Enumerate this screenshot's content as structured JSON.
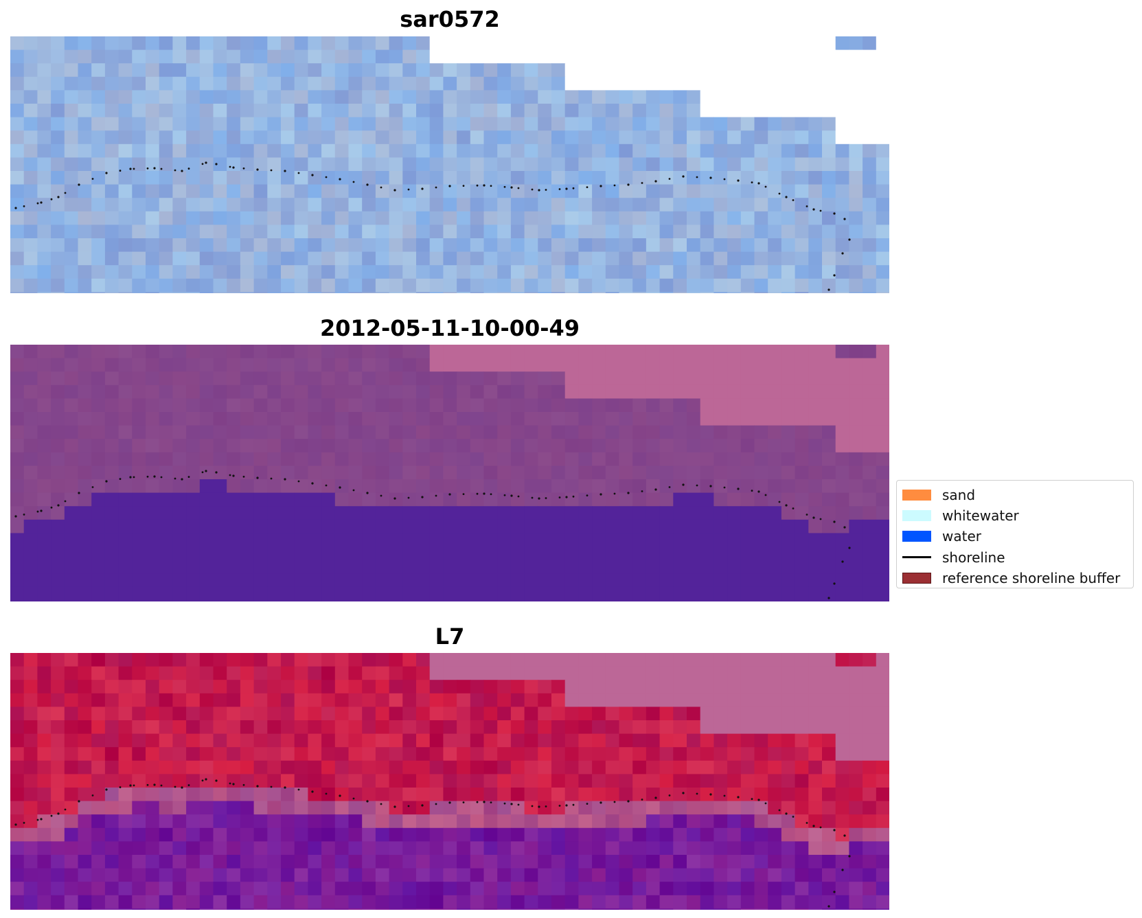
{
  "panels": [
    {
      "title": "sar0572",
      "kind": "rgb"
    },
    {
      "title": "2012-05-11-10-00-49",
      "kind": "classified"
    },
    {
      "title": "L7",
      "kind": "index"
    }
  ],
  "legend": {
    "items": [
      {
        "label": "sand",
        "type": "patch",
        "color": "#ff8c3f"
      },
      {
        "label": "whitewater",
        "type": "patch",
        "color": "#ccfbff"
      },
      {
        "label": "water",
        "type": "patch",
        "color": "#0055ff"
      },
      {
        "label": "shoreline",
        "type": "line",
        "color": "#000000"
      },
      {
        "label": "reference shoreline buffer",
        "type": "patch",
        "color": "#9b2f33",
        "edge": "#5b1416"
      }
    ]
  },
  "colors": {
    "nodata": "#ffffff",
    "rgb_base": "#95b3e0",
    "classified_land": "#85468b",
    "classified_water": "#53239a",
    "classified_nodata": "#bc6797",
    "index_land": "#c31a4d",
    "index_water": "#771b9b",
    "index_nodata": "#bc6797",
    "shoreline_dots": "#111111"
  }
}
